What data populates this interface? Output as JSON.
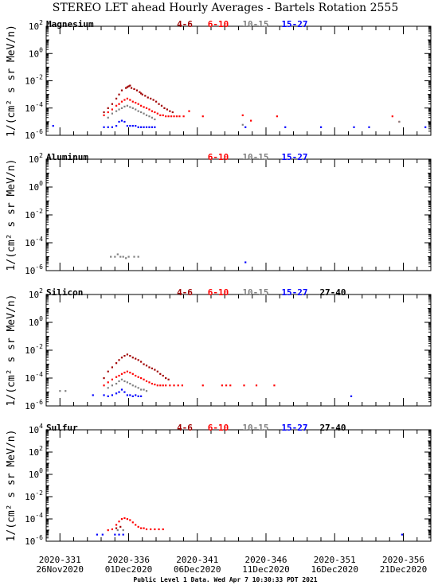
{
  "title": "STEREO LET ahead Hourly Averages - Bartels Rotation 2555",
  "footer": "Public Level 1 Data. Wed Apr  7 10:30:33 PDT 2021",
  "colors": {
    "4-6": "#a00000",
    "6-10": "#ff0000",
    "10-15": "#808080",
    "15-27": "#0000ff",
    "27-40": "#000000"
  },
  "x_tick_labels": [
    {
      "doy": "2020-331",
      "date": "26Nov2020"
    },
    {
      "doy": "2020-336",
      "date": "01Dec2020"
    },
    {
      "doy": "2020-341",
      "date": "06Dec2020"
    },
    {
      "doy": "2020-346",
      "date": "11Dec2020"
    },
    {
      "doy": "2020-351",
      "date": "16Dec2020"
    },
    {
      "doy": "2020-356",
      "date": "21Dec2020"
    }
  ],
  "chart_data": [
    {
      "type": "scatter",
      "panel": "Magnesium",
      "ylabel": "1/(cm² s sr MeV/n)",
      "yscale": "log",
      "ylim_exp": [
        -6,
        2
      ],
      "ytick_exps": [
        -6,
        -4,
        -2,
        0,
        2
      ],
      "xlim_day": [
        330,
        358
      ],
      "series": [
        {
          "name": "4-6",
          "points": [
            [
              334.2,
              5e-05
            ],
            [
              334.5,
              0.0001
            ],
            [
              334.8,
              0.0002
            ],
            [
              335.1,
              0.0005
            ],
            [
              335.3,
              0.001
            ],
            [
              335.5,
              0.002
            ],
            [
              335.8,
              0.003
            ],
            [
              336.0,
              0.004
            ],
            [
              336.2,
              0.003
            ],
            [
              336.4,
              0.0025
            ],
            [
              336.6,
              0.002
            ],
            [
              336.8,
              0.0015
            ],
            [
              337.0,
              0.001
            ],
            [
              337.2,
              0.0008
            ],
            [
              337.4,
              0.0006
            ],
            [
              337.6,
              0.0005
            ],
            [
              337.8,
              0.0004
            ],
            [
              338.0,
              0.0003
            ],
            [
              338.2,
              0.0002
            ],
            [
              338.4,
              0.00015
            ],
            [
              338.6,
              0.0001
            ],
            [
              338.8,
              8e-05
            ],
            [
              339.0,
              6e-05
            ],
            [
              339.2,
              5e-05
            ],
            [
              335.9,
              0.0035
            ],
            [
              336.1,
              0.0045
            ],
            [
              336.9,
              0.0012
            ]
          ]
        },
        {
          "name": "6-10",
          "points": [
            [
              334.2,
              3e-05
            ],
            [
              334.5,
              5e-05
            ],
            [
              334.8,
              8e-05
            ],
            [
              335.1,
              0.00015
            ],
            [
              335.3,
              0.0002
            ],
            [
              335.5,
              0.0003
            ],
            [
              335.7,
              0.0004
            ],
            [
              335.9,
              0.0005
            ],
            [
              336.1,
              0.0004
            ],
            [
              336.3,
              0.0003
            ],
            [
              336.5,
              0.00025
            ],
            [
              336.7,
              0.0002
            ],
            [
              336.9,
              0.00015
            ],
            [
              337.1,
              0.00012
            ],
            [
              337.3,
              0.0001
            ],
            [
              337.5,
              8e-05
            ],
            [
              337.7,
              6e-05
            ],
            [
              337.9,
              5e-05
            ],
            [
              338.1,
              4e-05
            ],
            [
              338.3,
              3e-05
            ],
            [
              338.5,
              3e-05
            ],
            [
              338.7,
              2.5e-05
            ],
            [
              338.9,
              2.5e-05
            ],
            [
              339.1,
              2.5e-05
            ],
            [
              339.3,
              2.5e-05
            ],
            [
              339.5,
              2.5e-05
            ],
            [
              339.7,
              2.5e-05
            ],
            [
              340.0,
              2.5e-05
            ],
            [
              340.4,
              6e-05
            ],
            [
              341.4,
              2.5e-05
            ],
            [
              344.3,
              3e-05
            ],
            [
              344.9,
              1.2e-05
            ],
            [
              346.8,
              2.5e-05
            ],
            [
              355.2,
              2.5e-05
            ],
            [
              355.7,
              1e-05
            ]
          ]
        },
        {
          "name": "10-15",
          "points": [
            [
              334.5,
              2e-05
            ],
            [
              334.8,
              4e-05
            ],
            [
              335.1,
              6e-05
            ],
            [
              335.3,
              8e-05
            ],
            [
              335.5,
              0.0001
            ],
            [
              335.7,
              0.00013
            ],
            [
              335.9,
              0.00015
            ],
            [
              336.1,
              0.00012
            ],
            [
              336.3,
              0.0001
            ],
            [
              336.5,
              8e-05
            ],
            [
              336.7,
              6e-05
            ],
            [
              336.9,
              5e-05
            ],
            [
              337.1,
              4e-05
            ],
            [
              337.3,
              3e-05
            ],
            [
              337.5,
              2.5e-05
            ],
            [
              337.7,
              2e-05
            ],
            [
              337.9,
              1.5e-05
            ],
            [
              344.3,
              6e-06
            ],
            [
              355.7,
              1e-05
            ]
          ]
        },
        {
          "name": "15-27",
          "points": [
            [
              330.5,
              5e-06
            ],
            [
              334.2,
              4e-06
            ],
            [
              334.5,
              4e-06
            ],
            [
              334.8,
              4e-06
            ],
            [
              335.1,
              5e-06
            ],
            [
              335.3,
              1e-05
            ],
            [
              335.5,
              1.2e-05
            ],
            [
              335.7,
              1e-05
            ],
            [
              335.9,
              5e-06
            ],
            [
              336.1,
              5e-06
            ],
            [
              336.3,
              5e-06
            ],
            [
              336.5,
              5e-06
            ],
            [
              336.7,
              4e-06
            ],
            [
              336.9,
              4e-06
            ],
            [
              337.1,
              4e-06
            ],
            [
              337.3,
              4e-06
            ],
            [
              337.5,
              4e-06
            ],
            [
              337.7,
              4e-06
            ],
            [
              337.9,
              4e-06
            ],
            [
              344.5,
              4e-06
            ],
            [
              347.4,
              4e-06
            ],
            [
              350.0,
              4e-06
            ],
            [
              352.4,
              4e-06
            ],
            [
              353.5,
              4e-06
            ],
            [
              357.6,
              4e-06
            ]
          ]
        }
      ]
    },
    {
      "type": "scatter",
      "panel": "Aluminum",
      "ylabel": "1/(cm² s sr MeV/n)",
      "yscale": "log",
      "ylim_exp": [
        -6,
        2
      ],
      "ytick_exps": [
        -6,
        -4,
        -2,
        0,
        2
      ],
      "xlim_day": [
        330,
        358
      ],
      "series": [
        {
          "name": "10-15",
          "points": [
            [
              334.7,
              1e-05
            ],
            [
              335.0,
              1e-05
            ],
            [
              335.2,
              1.5e-05
            ],
            [
              335.4,
              1e-05
            ],
            [
              335.6,
              1e-05
            ],
            [
              335.8,
              8e-06
            ],
            [
              336.0,
              1e-05
            ],
            [
              336.4,
              1e-05
            ],
            [
              336.7,
              1e-05
            ]
          ]
        },
        {
          "name": "15-27",
          "points": [
            [
              344.5,
              4e-06
            ]
          ]
        }
      ]
    },
    {
      "type": "scatter",
      "panel": "Silicon",
      "ylabel": "1/(cm² s sr MeV/n)",
      "yscale": "log",
      "ylim_exp": [
        -6,
        2
      ],
      "ytick_exps": [
        -6,
        -4,
        -2,
        0,
        2
      ],
      "xlim_day": [
        330,
        358
      ],
      "series": [
        {
          "name": "4-6",
          "points": [
            [
              334.2,
              0.0001
            ],
            [
              334.5,
              0.0003
            ],
            [
              334.8,
              0.0006
            ],
            [
              335.1,
              0.0012
            ],
            [
              335.3,
              0.002
            ],
            [
              335.5,
              0.003
            ],
            [
              335.7,
              0.004
            ],
            [
              335.9,
              0.005
            ],
            [
              336.1,
              0.004
            ],
            [
              336.3,
              0.003
            ],
            [
              336.5,
              0.0025
            ],
            [
              336.7,
              0.002
            ],
            [
              336.9,
              0.0015
            ],
            [
              337.1,
              0.001
            ],
            [
              337.3,
              0.0008
            ],
            [
              337.5,
              0.0006
            ],
            [
              337.7,
              0.0005
            ],
            [
              337.9,
              0.0004
            ],
            [
              338.1,
              0.0003
            ],
            [
              338.3,
              0.0002
            ],
            [
              338.5,
              0.00015
            ],
            [
              338.7,
              0.0001
            ],
            [
              338.9,
              8e-05
            ]
          ]
        },
        {
          "name": "6-10",
          "points": [
            [
              334.2,
              3e-05
            ],
            [
              334.5,
              5e-05
            ],
            [
              334.8,
              8e-05
            ],
            [
              335.1,
              0.00012
            ],
            [
              335.3,
              0.00015
            ],
            [
              335.5,
              0.0002
            ],
            [
              335.7,
              0.00025
            ],
            [
              335.9,
              0.0003
            ],
            [
              336.1,
              0.00025
            ],
            [
              336.3,
              0.0002
            ],
            [
              336.5,
              0.00015
            ],
            [
              336.7,
              0.00012
            ],
            [
              336.9,
              0.0001
            ],
            [
              337.1,
              8e-05
            ],
            [
              337.3,
              6e-05
            ],
            [
              337.5,
              5e-05
            ],
            [
              337.7,
              4e-05
            ],
            [
              337.9,
              3.5e-05
            ],
            [
              338.1,
              3e-05
            ],
            [
              338.3,
              3e-05
            ],
            [
              338.5,
              3e-05
            ],
            [
              338.7,
              3e-05
            ],
            [
              339.0,
              3e-05
            ],
            [
              339.3,
              3e-05
            ],
            [
              339.6,
              3e-05
            ],
            [
              339.9,
              3e-05
            ],
            [
              341.4,
              3e-05
            ],
            [
              342.8,
              3e-05
            ],
            [
              343.1,
              3e-05
            ],
            [
              343.4,
              3e-05
            ],
            [
              344.4,
              3e-05
            ],
            [
              345.3,
              3e-05
            ],
            [
              346.6,
              3e-05
            ]
          ]
        },
        {
          "name": "10-15",
          "points": [
            [
              331.0,
              1.2e-05
            ],
            [
              331.4,
              1.2e-05
            ],
            [
              334.5,
              2e-05
            ],
            [
              334.8,
              3e-05
            ],
            [
              335.1,
              4e-05
            ],
            [
              335.3,
              6e-05
            ],
            [
              335.5,
              8e-05
            ],
            [
              335.7,
              6e-05
            ],
            [
              335.9,
              5e-05
            ],
            [
              336.1,
              4e-05
            ],
            [
              336.3,
              3e-05
            ],
            [
              336.5,
              2.5e-05
            ],
            [
              336.7,
              2e-05
            ],
            [
              336.9,
              1.5e-05
            ],
            [
              337.1,
              1.5e-05
            ],
            [
              337.3,
              1.2e-05
            ]
          ]
        },
        {
          "name": "15-27",
          "points": [
            [
              333.4,
              6e-06
            ],
            [
              334.2,
              6e-06
            ],
            [
              334.5,
              5e-06
            ],
            [
              334.8,
              6e-06
            ],
            [
              335.1,
              8e-06
            ],
            [
              335.3,
              1e-05
            ],
            [
              335.5,
              1.5e-05
            ],
            [
              335.7,
              1e-05
            ],
            [
              335.9,
              6e-06
            ],
            [
              336.1,
              6e-06
            ],
            [
              336.3,
              5e-06
            ],
            [
              336.5,
              6e-06
            ],
            [
              336.7,
              5e-06
            ],
            [
              336.9,
              5e-06
            ],
            [
              352.2,
              5e-06
            ]
          ]
        }
      ]
    },
    {
      "type": "scatter",
      "panel": "Sulfur",
      "ylabel": "1/(cm² s sr MeV/n)",
      "yscale": "log",
      "ylim_exp": [
        -6,
        4
      ],
      "ytick_exps": [
        -6,
        -4,
        -2,
        0,
        2,
        4
      ],
      "xlim_day": [
        330,
        358
      ],
      "series": [
        {
          "name": "4-6",
          "points": [
            [
              335.1,
              1.5e-05
            ],
            [
              335.4,
              2e-05
            ]
          ]
        },
        {
          "name": "6-10",
          "points": [
            [
              334.5,
              1e-05
            ],
            [
              334.8,
              1.2e-05
            ],
            [
              335.1,
              3e-05
            ],
            [
              335.3,
              6e-05
            ],
            [
              335.5,
              0.0001
            ],
            [
              335.7,
              0.00012
            ],
            [
              335.9,
              0.0001
            ],
            [
              336.1,
              8e-05
            ],
            [
              336.3,
              5e-05
            ],
            [
              336.5,
              3e-05
            ],
            [
              336.7,
              2e-05
            ],
            [
              336.9,
              1.5e-05
            ],
            [
              337.1,
              1.5e-05
            ],
            [
              337.3,
              1.2e-05
            ],
            [
              337.6,
              1.2e-05
            ],
            [
              337.9,
              1.2e-05
            ],
            [
              338.2,
              1.2e-05
            ],
            [
              338.5,
              1.2e-05
            ]
          ]
        },
        {
          "name": "10-15",
          "points": [
            [
              335.2,
              1e-05
            ],
            [
              335.6,
              1e-05
            ]
          ]
        },
        {
          "name": "15-27",
          "points": [
            [
              333.7,
              4e-06
            ],
            [
              334.1,
              4e-06
            ],
            [
              335.0,
              4e-06
            ],
            [
              335.3,
              4e-06
            ],
            [
              335.6,
              4e-06
            ],
            [
              355.9,
              4e-06
            ]
          ]
        }
      ]
    }
  ],
  "panels_legend": [
    [
      "4-6",
      "6-10",
      "10-15",
      "15-27"
    ],
    [
      "6-10",
      "10-15",
      "15-27"
    ],
    [
      "4-6",
      "6-10",
      "10-15",
      "15-27",
      "27-40"
    ],
    [
      "4-6",
      "6-10",
      "10-15",
      "15-27",
      "27-40"
    ]
  ]
}
